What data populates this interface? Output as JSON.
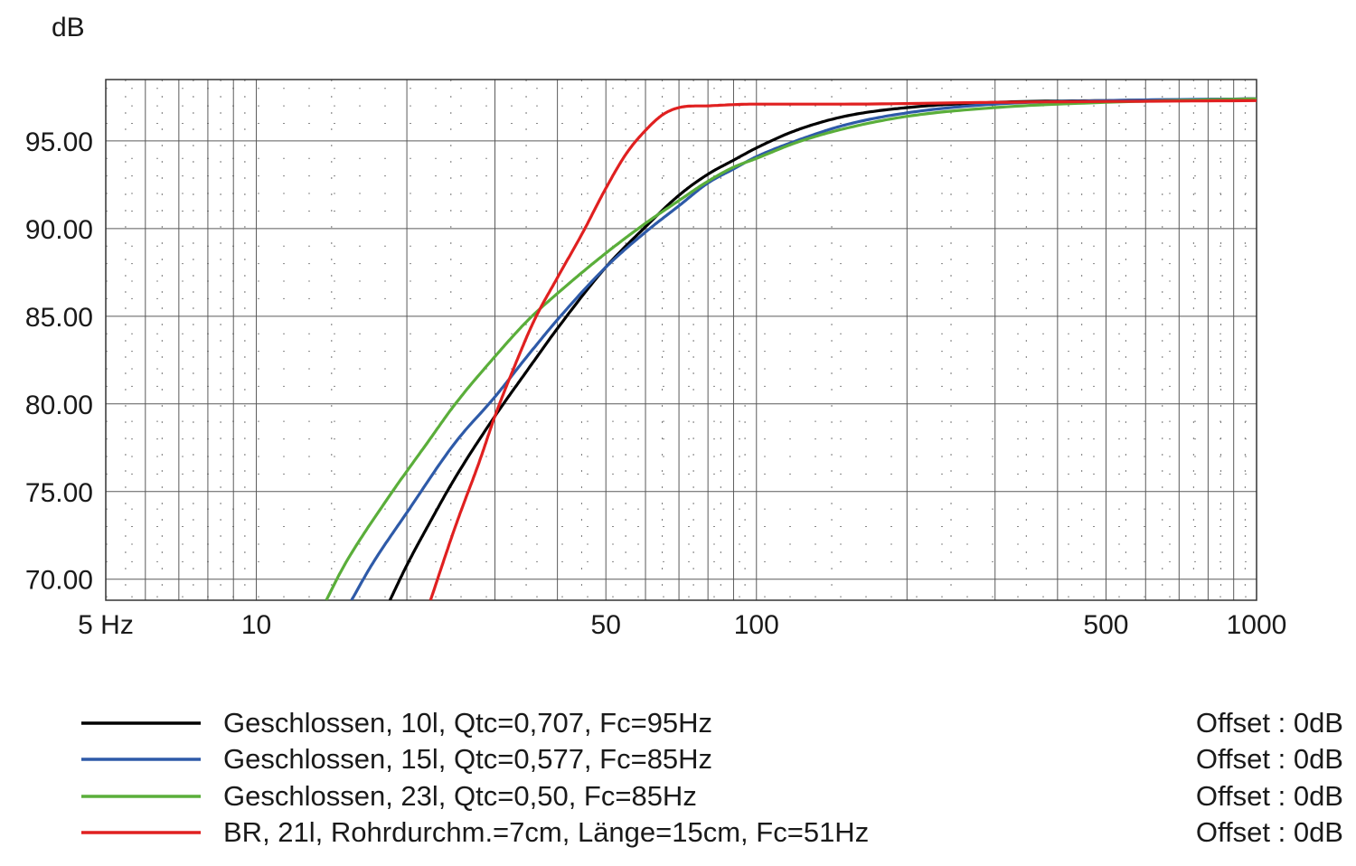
{
  "chart_data": {
    "type": "line",
    "title": "",
    "ylabel": "dB",
    "xlabel": "",
    "x_scale": "log",
    "xlim": [
      5,
      1000
    ],
    "ylim": [
      68.8,
      98.5
    ],
    "grid": true,
    "legend_position": "bottom",
    "x_ticks": [
      {
        "value": 5,
        "label": "5 Hz"
      },
      {
        "value": 10,
        "label": "10"
      },
      {
        "value": 50,
        "label": "50"
      },
      {
        "value": 100,
        "label": "100"
      },
      {
        "value": 500,
        "label": "500"
      },
      {
        "value": 1000,
        "label": "1000"
      }
    ],
    "y_ticks": [
      {
        "value": 70,
        "label": "70.00"
      },
      {
        "value": 75,
        "label": "75.00"
      },
      {
        "value": 80,
        "label": "80.00"
      },
      {
        "value": 85,
        "label": "85.00"
      },
      {
        "value": 90,
        "label": "90.00"
      },
      {
        "value": 95,
        "label": "95.00"
      }
    ],
    "series": [
      {
        "name": "Geschlossen, 10l, Qtc=0,707, Fc=95Hz",
        "offset": "Offset : 0dB",
        "color": "#000000",
        "points": [
          [
            18.5,
            68.8
          ],
          [
            20,
            70.8
          ],
          [
            22,
            73
          ],
          [
            25,
            75.8
          ],
          [
            30,
            79.3
          ],
          [
            35,
            82
          ],
          [
            40,
            84.3
          ],
          [
            50,
            87.8
          ],
          [
            60,
            90.1
          ],
          [
            70,
            91.9
          ],
          [
            80,
            93.1
          ],
          [
            90,
            93.9
          ],
          [
            100,
            94.6
          ],
          [
            120,
            95.6
          ],
          [
            150,
            96.4
          ],
          [
            200,
            96.9
          ],
          [
            300,
            97.2
          ],
          [
            500,
            97.3
          ],
          [
            1000,
            97.4
          ]
        ]
      },
      {
        "name": "Geschlossen, 15l, Qtc=0,577, Fc=85Hz",
        "offset": "Offset : 0dB",
        "color": "#2e5aa8",
        "points": [
          [
            15.5,
            68.8
          ],
          [
            17,
            70.8
          ],
          [
            20,
            73.8
          ],
          [
            25,
            77.8
          ],
          [
            30,
            80.4
          ],
          [
            35,
            82.8
          ],
          [
            40,
            84.8
          ],
          [
            50,
            87.8
          ],
          [
            60,
            89.8
          ],
          [
            70,
            91.3
          ],
          [
            80,
            92.6
          ],
          [
            90,
            93.4
          ],
          [
            100,
            94.1
          ],
          [
            120,
            95
          ],
          [
            150,
            95.9
          ],
          [
            200,
            96.6
          ],
          [
            300,
            97.1
          ],
          [
            500,
            97.3
          ],
          [
            1000,
            97.4
          ]
        ]
      },
      {
        "name": "Geschlossen, 23l, Qtc=0,50, Fc=85Hz",
        "offset": "Offset : 0dB",
        "color": "#5aae3a",
        "points": [
          [
            13.8,
            68.8
          ],
          [
            15,
            70.8
          ],
          [
            18,
            74.3
          ],
          [
            22,
            77.8
          ],
          [
            25,
            80
          ],
          [
            30,
            82.7
          ],
          [
            35,
            84.8
          ],
          [
            40,
            86.3
          ],
          [
            50,
            88.6
          ],
          [
            60,
            90.3
          ],
          [
            70,
            91.6
          ],
          [
            80,
            92.7
          ],
          [
            90,
            93.5
          ],
          [
            100,
            94
          ],
          [
            120,
            94.9
          ],
          [
            150,
            95.7
          ],
          [
            200,
            96.4
          ],
          [
            300,
            96.9
          ],
          [
            500,
            97.2
          ],
          [
            1000,
            97.4
          ]
        ]
      },
      {
        "name": "BR, 21l, Rohrdurchm.=7cm, Länge=15cm, Fc=51Hz",
        "offset": "Offset : 0dB",
        "color": "#e02020",
        "points": [
          [
            22.3,
            68.8
          ],
          [
            25,
            73
          ],
          [
            28,
            76.8
          ],
          [
            30,
            79.3
          ],
          [
            33,
            82.3
          ],
          [
            36,
            84.8
          ],
          [
            40,
            87.2
          ],
          [
            45,
            89.8
          ],
          [
            50,
            92.3
          ],
          [
            55,
            94.3
          ],
          [
            60,
            95.6
          ],
          [
            65,
            96.5
          ],
          [
            70,
            96.9
          ],
          [
            80,
            97
          ],
          [
            100,
            97.1
          ],
          [
            150,
            97.1
          ],
          [
            300,
            97.2
          ],
          [
            1000,
            97.3
          ]
        ]
      }
    ]
  }
}
